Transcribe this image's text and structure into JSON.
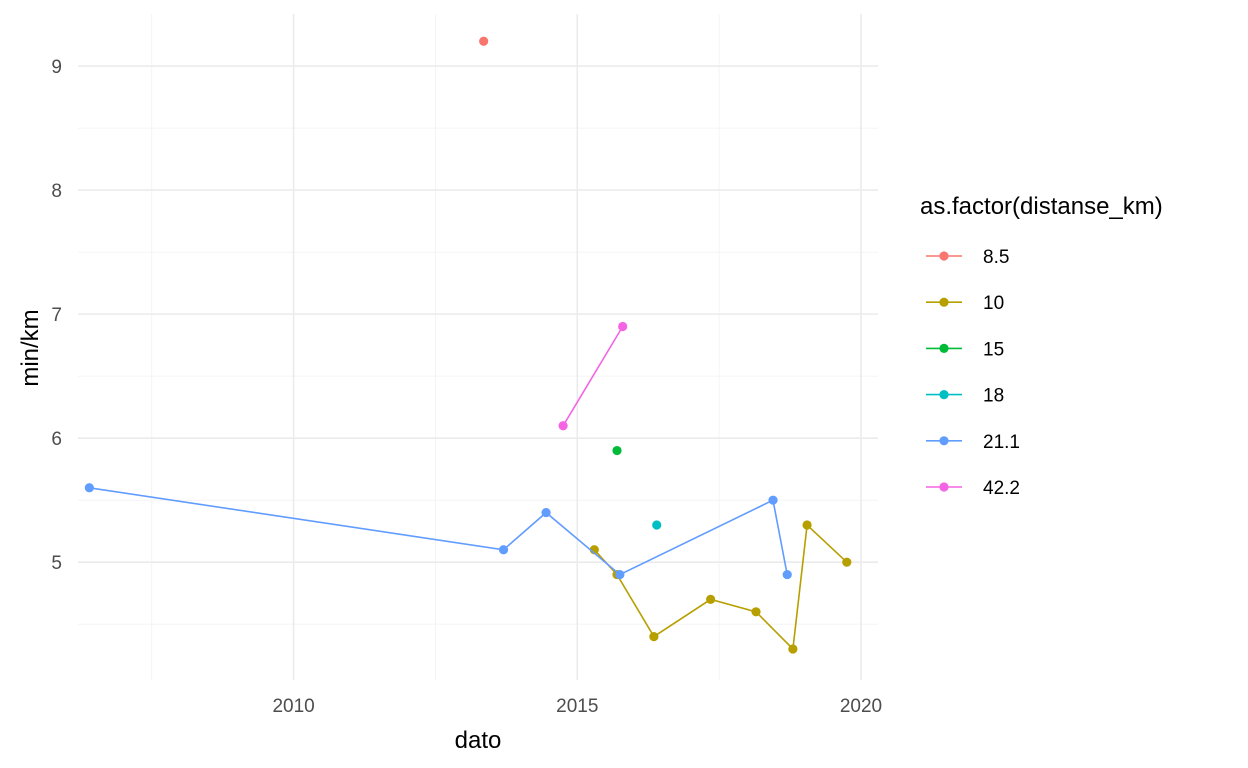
{
  "chart_data": {
    "type": "line",
    "xlabel": "dato",
    "ylabel": "min/km",
    "legend_title": "as.factor(distanse_km)",
    "legend_position": "right",
    "grid": true,
    "xlim": [
      2006.2,
      2020.3
    ],
    "ylim": [
      4.05,
      9.42
    ],
    "x_ticks": [
      2010,
      2015,
      2020
    ],
    "x_minor_ticks": [
      2007.5,
      2012.5,
      2017.5
    ],
    "y_ticks": [
      5,
      6,
      7,
      8,
      9
    ],
    "y_minor_ticks": [
      4.5,
      5.5,
      6.5,
      7.5,
      8.5
    ],
    "series": [
      {
        "name": "8.5",
        "color": "#F8766D",
        "points": [
          [
            2013.35,
            9.2
          ]
        ]
      },
      {
        "name": "10",
        "color": "#B79F00",
        "points": [
          [
            2015.3,
            5.1
          ],
          [
            2015.7,
            4.9
          ],
          [
            2016.35,
            4.4
          ],
          [
            2017.35,
            4.7
          ],
          [
            2018.15,
            4.6
          ],
          [
            2018.8,
            4.3
          ],
          [
            2019.05,
            5.3
          ],
          [
            2019.75,
            5.0
          ]
        ]
      },
      {
        "name": "15",
        "color": "#00BA38",
        "points": [
          [
            2015.7,
            5.9
          ]
        ]
      },
      {
        "name": "18",
        "color": "#00BFC4",
        "points": [
          [
            2016.4,
            5.3
          ]
        ]
      },
      {
        "name": "21.1",
        "color": "#619CFF",
        "points": [
          [
            2006.4,
            5.6
          ],
          [
            2013.7,
            5.1
          ],
          [
            2014.45,
            5.4
          ],
          [
            2015.75,
            4.9
          ],
          [
            2018.45,
            5.5
          ],
          [
            2018.7,
            4.9
          ]
        ]
      },
      {
        "name": "42.2",
        "color": "#F564E3",
        "points": [
          [
            2014.75,
            6.1
          ],
          [
            2015.8,
            6.9
          ]
        ]
      }
    ]
  }
}
